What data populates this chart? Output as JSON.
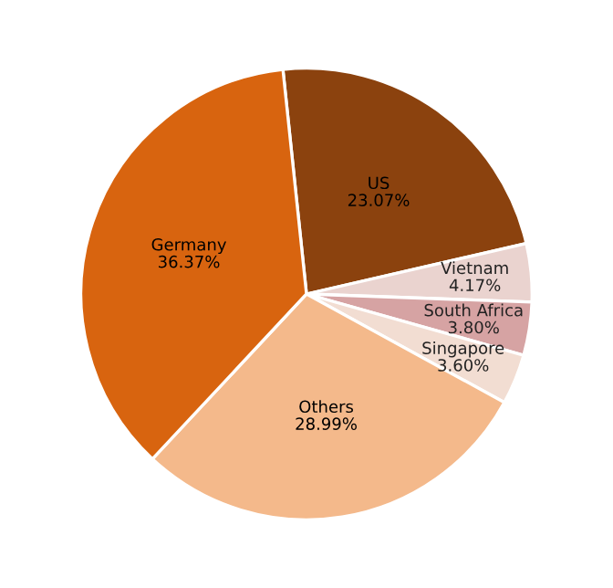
{
  "chart_data": {
    "type": "pie",
    "categories": [
      "US",
      "Vietnam",
      "South Africa",
      "Singapore",
      "Others",
      "Germany"
    ],
    "values": [
      23.07,
      4.17,
      3.8,
      3.6,
      28.99,
      36.37
    ],
    "colors": [
      "#8b420e",
      "#ead3cf",
      "#d6a3a3",
      "#f2ddd2",
      "#f4b98b",
      "#d8640f"
    ],
    "value_labels": [
      "23.07%",
      "4.17%",
      "3.80%",
      "3.60%",
      "28.99%",
      "36.37%"
    ]
  }
}
